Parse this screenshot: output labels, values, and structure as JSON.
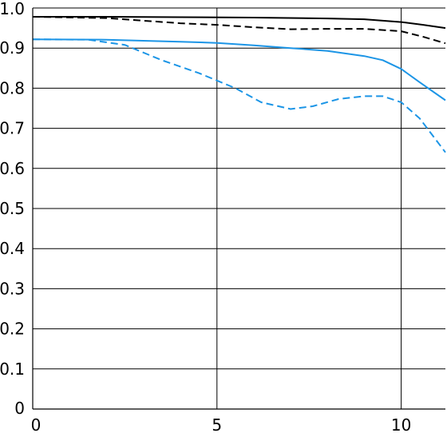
{
  "chart_data": {
    "type": "line",
    "title": "",
    "xlabel": "",
    "ylabel": "",
    "xlim": [
      0,
      11.2
    ],
    "ylim": [
      0,
      1.0
    ],
    "x_ticks": [
      0,
      5,
      10
    ],
    "x_tick_labels": [
      "0",
      "5",
      "10"
    ],
    "y_ticks": [
      0,
      0.1,
      0.2,
      0.3,
      0.4,
      0.5,
      0.6,
      0.7,
      0.8,
      0.9,
      1.0
    ],
    "y_tick_labels": [
      "0",
      "0.1",
      "0.2",
      "0.3",
      "0.4",
      "0.5",
      "0.6",
      "0.7",
      "0.8",
      "0.9",
      "1.0"
    ],
    "grid": true,
    "legend": "none",
    "series": [
      {
        "color": "#000000",
        "dash": "solid",
        "points": [
          [
            0,
            0.978
          ],
          [
            2,
            0.978
          ],
          [
            4,
            0.977
          ],
          [
            6,
            0.976
          ],
          [
            8,
            0.974
          ],
          [
            9,
            0.972
          ],
          [
            10,
            0.965
          ],
          [
            10.6,
            0.958
          ],
          [
            11.2,
            0.95
          ]
        ]
      },
      {
        "color": "#000000",
        "dash": "dashed",
        "points": [
          [
            0,
            0.978
          ],
          [
            2,
            0.975
          ],
          [
            4,
            0.962
          ],
          [
            5,
            0.958
          ],
          [
            6,
            0.952
          ],
          [
            7,
            0.947
          ],
          [
            8,
            0.948
          ],
          [
            9,
            0.948
          ],
          [
            10,
            0.942
          ],
          [
            10.6,
            0.928
          ],
          [
            11.2,
            0.912
          ]
        ]
      },
      {
        "color": "#1c95e6",
        "dash": "solid",
        "points": [
          [
            0,
            0.922
          ],
          [
            2,
            0.921
          ],
          [
            4,
            0.916
          ],
          [
            5,
            0.913
          ],
          [
            6,
            0.907
          ],
          [
            7,
            0.9
          ],
          [
            8,
            0.893
          ],
          [
            9,
            0.88
          ],
          [
            9.5,
            0.87
          ],
          [
            10,
            0.848
          ],
          [
            10.5,
            0.815
          ],
          [
            11.2,
            0.77
          ]
        ]
      },
      {
        "color": "#1c95e6",
        "dash": "dashed",
        "points": [
          [
            0,
            0.922
          ],
          [
            1.5,
            0.921
          ],
          [
            2.5,
            0.908
          ],
          [
            3.5,
            0.87
          ],
          [
            4.5,
            0.838
          ],
          [
            5.5,
            0.8
          ],
          [
            6.2,
            0.765
          ],
          [
            7,
            0.748
          ],
          [
            7.6,
            0.755
          ],
          [
            8.3,
            0.773
          ],
          [
            9,
            0.78
          ],
          [
            9.5,
            0.78
          ],
          [
            10,
            0.765
          ],
          [
            10.5,
            0.725
          ],
          [
            11.2,
            0.64
          ]
        ]
      }
    ]
  }
}
